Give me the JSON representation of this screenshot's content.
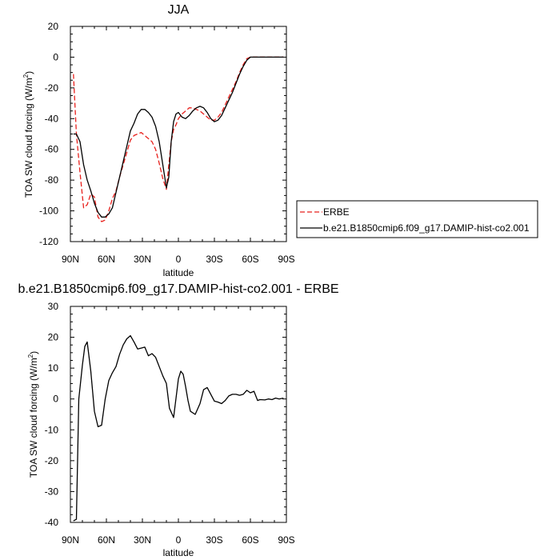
{
  "chart_data": [
    {
      "type": "line",
      "title": "JJA",
      "xlabel": "latitude",
      "ylabel": "TOA SW cloud forcing (W/m",
      "ylabel_sup": "2",
      "ylabel_end": ")",
      "xlim": [
        90,
        -90
      ],
      "ylim": [
        -120,
        20
      ],
      "x_ticks": [
        {
          "value": 90,
          "label": "90N"
        },
        {
          "value": 60,
          "label": "60N"
        },
        {
          "value": 30,
          "label": "30N"
        },
        {
          "value": 0,
          "label": "0"
        },
        {
          "value": -30,
          "label": "30S"
        },
        {
          "value": -60,
          "label": "60S"
        },
        {
          "value": -90,
          "label": "90S"
        }
      ],
      "y_ticks": [
        {
          "value": 20,
          "label": "20"
        },
        {
          "value": 0,
          "label": "0"
        },
        {
          "value": -20,
          "label": "-20"
        },
        {
          "value": -40,
          "label": "-40"
        },
        {
          "value": -60,
          "label": "-60"
        },
        {
          "value": -80,
          "label": "-80"
        },
        {
          "value": -100,
          "label": "-100"
        },
        {
          "value": -120,
          "label": "-120"
        }
      ],
      "grid": false,
      "legend_position": "right",
      "series": [
        {
          "name": "ERBE",
          "color": "#e8201c",
          "dash": "dashed",
          "x": [
            87.5,
            85,
            82,
            79,
            76,
            73,
            70,
            67,
            64,
            61,
            58,
            55,
            52,
            49,
            46,
            43,
            40,
            37,
            34,
            31,
            28,
            25,
            22,
            19,
            16,
            13,
            10,
            8,
            6,
            4,
            2,
            0,
            -3,
            -6,
            -9,
            -12,
            -15,
            -18,
            -21,
            -24,
            -27,
            -30,
            -33,
            -36,
            -39,
            -42,
            -45,
            -48,
            -51,
            -54,
            -57,
            -60,
            -63,
            -66,
            -69,
            -72,
            -75,
            -78,
            -81,
            -84,
            -87.5
          ],
          "y": [
            -11,
            -50,
            -75,
            -98,
            -96,
            -89,
            -91,
            -104,
            -107,
            -106,
            -100,
            -92,
            -87,
            -78,
            -70,
            -62,
            -54,
            -51,
            -50,
            -49,
            -51,
            -53,
            -55,
            -60,
            -69,
            -79,
            -86,
            -70,
            -55,
            -47,
            -44,
            -40,
            -37,
            -35,
            -33,
            -33,
            -34,
            -35,
            -37,
            -39,
            -41,
            -41,
            -39,
            -36,
            -31,
            -26,
            -21,
            -16,
            -10,
            -5,
            -1,
            0,
            0,
            0,
            0,
            0,
            0,
            0,
            0,
            0,
            0
          ]
        },
        {
          "name": "b.e21.B1850cmip6.f09_g17.DAMIP-hist-co2.001",
          "color": "#000000",
          "dash": "solid",
          "x": [
            87.5,
            85,
            82,
            79,
            76,
            73,
            70,
            67,
            64,
            61,
            58,
            55,
            52,
            49,
            46,
            43,
            40,
            37,
            34,
            31,
            28,
            25,
            22,
            19,
            16,
            13,
            10,
            8,
            6,
            4,
            2,
            0,
            -3,
            -6,
            -9,
            -12,
            -15,
            -18,
            -21,
            -24,
            -27,
            -30,
            -33,
            -36,
            -39,
            -42,
            -45,
            -48,
            -51,
            -54,
            -57,
            -60,
            -63,
            -66,
            -69,
            -72,
            -75,
            -78,
            -81,
            -84,
            -87.5
          ],
          "y": [
            -50,
            -50,
            -55,
            -70,
            -80,
            -87,
            -95,
            -101,
            -104,
            -104,
            -102,
            -98,
            -88,
            -78,
            -68,
            -58,
            -48,
            -43,
            -37,
            -34,
            -34,
            -36,
            -39,
            -45,
            -55,
            -70,
            -85,
            -78,
            -55,
            -42,
            -37,
            -36,
            -39,
            -40,
            -38,
            -35,
            -33,
            -32,
            -33,
            -36,
            -40,
            -42,
            -41,
            -38,
            -33,
            -28,
            -23,
            -17,
            -11,
            -6,
            -2,
            0,
            0,
            0,
            0,
            0,
            0,
            0,
            0,
            0,
            0
          ]
        }
      ]
    },
    {
      "type": "line",
      "title": "b.e21.B1850cmip6.f09_g17.DAMIP-hist-co2.001 - ERBE",
      "xlabel": "latitude",
      "ylabel": "TOA SW cloud forcing (W/m",
      "ylabel_sup": "2",
      "ylabel_end": ")",
      "xlim": [
        90,
        -90
      ],
      "ylim": [
        -40,
        30
      ],
      "x_ticks": [
        {
          "value": 90,
          "label": "90N"
        },
        {
          "value": 60,
          "label": "60N"
        },
        {
          "value": 30,
          "label": "30N"
        },
        {
          "value": 0,
          "label": "0"
        },
        {
          "value": -30,
          "label": "30S"
        },
        {
          "value": -60,
          "label": "60S"
        },
        {
          "value": -90,
          "label": "90S"
        }
      ],
      "y_ticks": [
        {
          "value": 30,
          "label": "30"
        },
        {
          "value": 20,
          "label": "20"
        },
        {
          "value": 10,
          "label": "10"
        },
        {
          "value": 0,
          "label": "0"
        },
        {
          "value": -10,
          "label": "-10"
        },
        {
          "value": -20,
          "label": "-20"
        },
        {
          "value": -30,
          "label": "-30"
        },
        {
          "value": -40,
          "label": "-40"
        }
      ],
      "grid": false,
      "series": [
        {
          "color": "#000000",
          "dash": "solid",
          "x": [
            87.5,
            85,
            83,
            80,
            78,
            76,
            73,
            70,
            67,
            64,
            61,
            58,
            55,
            52,
            49,
            46,
            43,
            40,
            37,
            34,
            31,
            28,
            25,
            22,
            19,
            16,
            13,
            10,
            7.5,
            4,
            2,
            0,
            -2,
            -4,
            -6,
            -8,
            -10,
            -14,
            -18,
            -21,
            -24,
            -27,
            -30,
            -33,
            -36,
            -39,
            -42,
            -45,
            -48,
            -51,
            -54,
            -57,
            -60,
            -63,
            -66,
            -68,
            -72,
            -75,
            -78,
            -81,
            -84,
            -87.5
          ],
          "y": [
            -39.5,
            -39,
            0,
            11,
            17,
            18.5,
            9,
            -4,
            -9,
            -8.5,
            0,
            6,
            8.5,
            10.5,
            14.5,
            17.5,
            19.5,
            20.5,
            18.5,
            16.2,
            16.5,
            16.8,
            14,
            14.7,
            13.5,
            10.5,
            7.5,
            5,
            -3,
            -6,
            0.2,
            6.5,
            9,
            8,
            4,
            -0.5,
            -4,
            -5,
            -1.5,
            3,
            3.7,
            1.5,
            -0.7,
            -1,
            -1.5,
            -0.5,
            1,
            1.5,
            1.5,
            1.2,
            1.5,
            2.8,
            2,
            2.5,
            -0.5,
            -0.2,
            -0.3,
            0,
            -0.2,
            0.3,
            0,
            0.3
          ]
        }
      ]
    }
  ]
}
